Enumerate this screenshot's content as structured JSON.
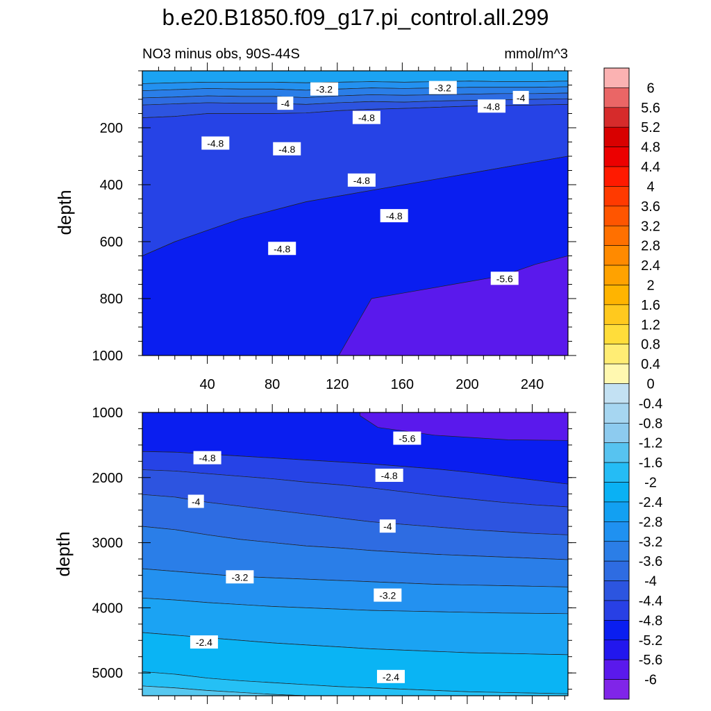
{
  "chart_data": {
    "title": "b.e20.B1850.f09_g17.pi_control.all.299",
    "type": "heatmap",
    "panels": [
      {
        "name": "upper-panel",
        "subtitle_left": "NO3 minus obs, 90S-44S",
        "subtitle_right": "mmol/m^3",
        "ylabel": "depth",
        "xlim": [
          0,
          262
        ],
        "ylim": [
          0,
          1000
        ],
        "y_inverted": true,
        "x_ticks": [
          "40",
          "80",
          "120",
          "160",
          "200",
          "240"
        ],
        "x_tick_values": [
          40,
          80,
          120,
          160,
          200,
          240
        ],
        "y_ticks": [
          "200",
          "400",
          "600",
          "800",
          "1000"
        ],
        "y_tick_values": [
          200,
          400,
          600,
          800,
          1000
        ],
        "bands": [
          {
            "level": -2.6,
            "color": "#11a6ec",
            "top": [
              0,
              0,
              0,
              0,
              0,
              0,
              0,
              0,
              0,
              0,
              0,
              0,
              0,
              0
            ],
            "bottom": [
              0,
              0,
              0,
              0,
              0,
              0,
              0,
              0,
              0,
              0,
              0,
              0,
              0,
              0
            ]
          },
          {
            "level": -2.8,
            "color": "#1ba3f3",
            "top": [
              0,
              0,
              0,
              0,
              0,
              0,
              0,
              0,
              0,
              0,
              0,
              0,
              0,
              0
            ],
            "bottom": [
              45,
              42,
              40,
              40,
              40,
              42,
              40,
              38,
              40,
              38,
              36,
              38,
              38,
              36
            ]
          },
          {
            "level": -3.2,
            "color": "#2391f0",
            "top": [
              45,
              42,
              40,
              40,
              40,
              42,
              40,
              38,
              40,
              38,
              36,
              38,
              38,
              36
            ],
            "bottom": [
              70,
              66,
              62,
              64,
              64,
              68,
              64,
              60,
              62,
              60,
              58,
              58,
              58,
              56
            ]
          },
          {
            "level": -3.6,
            "color": "#2a7ee8",
            "top": [
              70,
              66,
              62,
              64,
              64,
              68,
              64,
              60,
              62,
              60,
              58,
              58,
              58,
              56
            ],
            "bottom": [
              95,
              92,
              88,
              90,
              90,
              94,
              88,
              84,
              86,
              84,
              82,
              80,
              80,
              78
            ]
          },
          {
            "level": -4.0,
            "color": "#2e6ce2",
            "top": [
              95,
              92,
              88,
              90,
              90,
              94,
              88,
              84,
              86,
              84,
              82,
              80,
              80,
              78
            ],
            "bottom": [
              120,
              116,
              112,
              114,
              114,
              118,
              112,
              108,
              110,
              106,
              104,
              102,
              100,
              98
            ]
          },
          {
            "level": -4.4,
            "color": "#2d54e0",
            "top": [
              120,
              116,
              112,
              114,
              114,
              118,
              112,
              108,
              110,
              106,
              104,
              102,
              100,
              98
            ],
            "bottom": [
              165,
              160,
              150,
              150,
              150,
              148,
              140,
              135,
              132,
              128,
              124,
              122,
              120,
              118
            ]
          },
          {
            "level": -4.8,
            "color": "#2643e6",
            "top": [
              165,
              160,
              150,
              150,
              150,
              148,
              140,
              135,
              132,
              128,
              124,
              122,
              120,
              118
            ],
            "bottom": [
              650,
              600,
              560,
              520,
              490,
              460,
              440,
              420,
              400,
              380,
              360,
              340,
              320,
              300
            ]
          },
          {
            "level": -5.2,
            "color": "#0a1ef0",
            "top": [
              650,
              600,
              560,
              520,
              490,
              460,
              440,
              420,
              400,
              380,
              360,
              340,
              320,
              300
            ],
            "bottom": [
              1000,
              1000,
              1000,
              1000,
              1000,
              1000,
              1000,
              1000,
              1000,
              1000,
              1000,
              1000,
              1000,
              1000
            ]
          },
          {
            "level": -5.6,
            "color": "#5a19ec",
            "top": [
              1000,
              1000,
              1000,
              1000,
              1000,
              1000,
              1000,
              800,
              780,
              760,
              740,
              720,
              680,
              650
            ],
            "bottom": [
              1000,
              1000,
              1000,
              1000,
              1000,
              1000,
              1000,
              1000,
              1000,
              1000,
              1000,
              1000,
              1000,
              1000
            ]
          }
        ],
        "contour_labels": [
          {
            "text": "-3.2",
            "x": 112,
            "y": 65
          },
          {
            "text": "-3.2",
            "x": 185,
            "y": 60
          },
          {
            "text": "-4",
            "x": 88,
            "y": 115
          },
          {
            "text": "-4",
            "x": 233,
            "y": 95
          },
          {
            "text": "-4.8",
            "x": 138,
            "y": 165
          },
          {
            "text": "-4.8",
            "x": 215,
            "y": 125
          },
          {
            "text": "-4.8",
            "x": 45,
            "y": 255
          },
          {
            "text": "-4.8",
            "x": 89,
            "y": 275
          },
          {
            "text": "-4.8",
            "x": 135,
            "y": 385
          },
          {
            "text": "-4.8",
            "x": 155,
            "y": 510
          },
          {
            "text": "-4.8",
            "x": 86,
            "y": 625
          },
          {
            "text": "-5.6",
            "x": 223,
            "y": 730
          }
        ]
      },
      {
        "name": "lower-panel",
        "ylabel": "depth",
        "xlim": [
          0,
          262
        ],
        "ylim": [
          1000,
          5350
        ],
        "y_inverted": true,
        "y_ticks": [
          "1000",
          "2000",
          "3000",
          "4000",
          "5000"
        ],
        "y_tick_values": [
          1000,
          2000,
          3000,
          4000,
          5000
        ],
        "bands": [
          {
            "level": -5.4,
            "color": "#0a1ef0",
            "top": [
              1000,
              1000,
              1000,
              1000,
              1000,
              1000,
              1000,
              1000,
              1000,
              1000,
              1000,
              1000,
              1000,
              1000
            ],
            "bottom": [
              1600,
              1610,
              1640,
              1670,
              1700,
              1730,
              1760,
              1790,
              1830,
              1870,
              1920,
              1980,
              2040,
              2100
            ]
          },
          {
            "level": -5.9,
            "color": "#5a19ec",
            "top": [
              1000,
              1000,
              1000,
              1000,
              1000,
              1000,
              1000,
              1000,
              1000,
              1000,
              1000,
              1000,
              1000,
              1000
            ],
            "bottom": [
              1000,
              1000,
              1000,
              1000,
              1000,
              1000,
              1000,
              1000,
              1000,
              1000,
              1000,
              1000,
              1000,
              1000
            ]
          },
          {
            "level": -4.8,
            "color": "#2643e6",
            "top": [
              1600,
              1610,
              1640,
              1670,
              1700,
              1730,
              1760,
              1790,
              1830,
              1870,
              1920,
              1980,
              2040,
              2100
            ],
            "bottom": [
              1880,
              1900,
              1940,
              1980,
              2020,
              2070,
              2110,
              2160,
              2220,
              2280,
              2330,
              2380,
              2420,
              2450
            ]
          },
          {
            "level": -4.4,
            "color": "#2d54e0",
            "top": [
              1880,
              1900,
              1940,
              1980,
              2020,
              2070,
              2110,
              2160,
              2220,
              2280,
              2330,
              2380,
              2420,
              2450
            ],
            "bottom": [
              2260,
              2300,
              2380,
              2440,
              2500,
              2560,
              2620,
              2680,
              2720,
              2760,
              2800,
              2830,
              2860,
              2880
            ]
          },
          {
            "level": -4.0,
            "color": "#2e6ce2",
            "top": [
              2260,
              2300,
              2380,
              2440,
              2500,
              2560,
              2620,
              2680,
              2720,
              2760,
              2800,
              2830,
              2860,
              2880
            ],
            "bottom": [
              2750,
              2800,
              2880,
              2950,
              3000,
              3050,
              3080,
              3120,
              3150,
              3180,
              3200,
              3220,
              3240,
              3260
            ]
          },
          {
            "level": -3.6,
            "color": "#2a7ee8",
            "top": [
              2750,
              2800,
              2880,
              2950,
              3000,
              3050,
              3080,
              3120,
              3150,
              3180,
              3200,
              3220,
              3240,
              3260
            ],
            "bottom": [
              3400,
              3440,
              3480,
              3520,
              3540,
              3560,
              3580,
              3600,
              3620,
              3640,
              3650,
              3660,
              3670,
              3680
            ]
          },
          {
            "level": -3.2,
            "color": "#2391f0",
            "top": [
              3400,
              3440,
              3480,
              3520,
              3540,
              3560,
              3580,
              3600,
              3620,
              3640,
              3650,
              3660,
              3670,
              3680
            ],
            "bottom": [
              3850,
              3880,
              3920,
              3950,
              3980,
              4000,
              4020,
              4040,
              4050,
              4060,
              4070,
              4080,
              4085,
              4090
            ]
          },
          {
            "level": -2.8,
            "color": "#1ba3f3",
            "top": [
              3850,
              3880,
              3920,
              3950,
              3980,
              4000,
              4020,
              4040,
              4050,
              4060,
              4070,
              4080,
              4085,
              4090
            ],
            "bottom": [
              4380,
              4420,
              4460,
              4500,
              4540,
              4570,
              4600,
              4630,
              4650,
              4670,
              4690,
              4700,
              4710,
              4720
            ]
          },
          {
            "level": -2.4,
            "color": "#0ab4f4",
            "top": [
              4380,
              4420,
              4460,
              4500,
              4540,
              4570,
              4600,
              4630,
              4650,
              4670,
              4690,
              4700,
              4710,
              4720
            ],
            "bottom": [
              4980,
              5020,
              5080,
              5120,
              5150,
              5180,
              5210,
              5230,
              5250,
              5270,
              5290,
              5300,
              5310,
              5320
            ]
          },
          {
            "level": -2.0,
            "color": "#25c0f5",
            "top": [
              4980,
              5020,
              5080,
              5120,
              5150,
              5180,
              5210,
              5230,
              5250,
              5270,
              5290,
              5300,
              5310,
              5320
            ],
            "bottom": [
              5200,
              5230,
              5270,
              5300,
              5330,
              5350,
              5350,
              5350,
              5350,
              5350,
              5350,
              5350,
              5350,
              5350
            ]
          },
          {
            "level": -1.6,
            "color": "#57c8f0",
            "top": [
              5200,
              5230,
              5270,
              5300,
              5330,
              5350,
              5350,
              5350,
              5350,
              5350,
              5350,
              5350,
              5350,
              5350
            ],
            "bottom": [
              5350,
              5350,
              5350,
              5350,
              5350,
              5350,
              5350,
              5350,
              5350,
              5350,
              5350,
              5350,
              5350,
              5350
            ]
          }
        ],
        "patch_deep": {
          "level": -5.9,
          "color": "#5a19ec",
          "poly": [
            [
              134,
              1000
            ],
            [
              262,
              1000
            ],
            [
              262,
              1430
            ],
            [
              225,
              1420
            ],
            [
              180,
              1350
            ],
            [
              145,
              1230
            ],
            [
              134,
              1050
            ]
          ]
        },
        "contour_labels": [
          {
            "text": "-5.6",
            "x": 163,
            "y": 1400
          },
          {
            "text": "-4.8",
            "x": 40,
            "y": 1700
          },
          {
            "text": "-4.8",
            "x": 152,
            "y": 1970
          },
          {
            "text": "-4",
            "x": 33,
            "y": 2370
          },
          {
            "text": "-4",
            "x": 151,
            "y": 2750
          },
          {
            "text": "-3.2",
            "x": 60,
            "y": 3530
          },
          {
            "text": "-3.2",
            "x": 151,
            "y": 3810
          },
          {
            "text": "-2.4",
            "x": 38,
            "y": 4530
          },
          {
            "text": "-2.4",
            "x": 153,
            "y": 5060
          }
        ]
      }
    ],
    "colorbar": {
      "levels": [
        "6",
        "5.6",
        "5.2",
        "4.8",
        "4.4",
        "4",
        "3.6",
        "3.2",
        "2.8",
        "2.4",
        "2",
        "1.6",
        "1.2",
        "0.8",
        "0.4",
        "0",
        "-0.4",
        "-0.8",
        "-1.2",
        "-1.6",
        "-2",
        "-2.4",
        "-2.8",
        "-3.2",
        "-3.6",
        "-4",
        "-4.4",
        "-4.8",
        "-5.2",
        "-5.6",
        "-6"
      ],
      "colors": [
        "#fbb2b2",
        "#ea6666",
        "#d62b2b",
        "#d80000",
        "#ec0000",
        "#ff1a00",
        "#ff3a00",
        "#ff5500",
        "#ff7000",
        "#ff8a00",
        "#ffa200",
        "#ffb400",
        "#ffc91e",
        "#ffdd3a",
        "#ffed74",
        "#fff8b0",
        "#c3e1f3",
        "#a6d6f1",
        "#8dcbef",
        "#57c3f0",
        "#25bcf5",
        "#0ab1f4",
        "#12a0f2",
        "#1f91f1",
        "#2b7ee7",
        "#2e6ce2",
        "#2c55e0",
        "#2840e5",
        "#0a1ef0",
        "#2217ee",
        "#5a19ec",
        "#8025e8"
      ]
    }
  }
}
